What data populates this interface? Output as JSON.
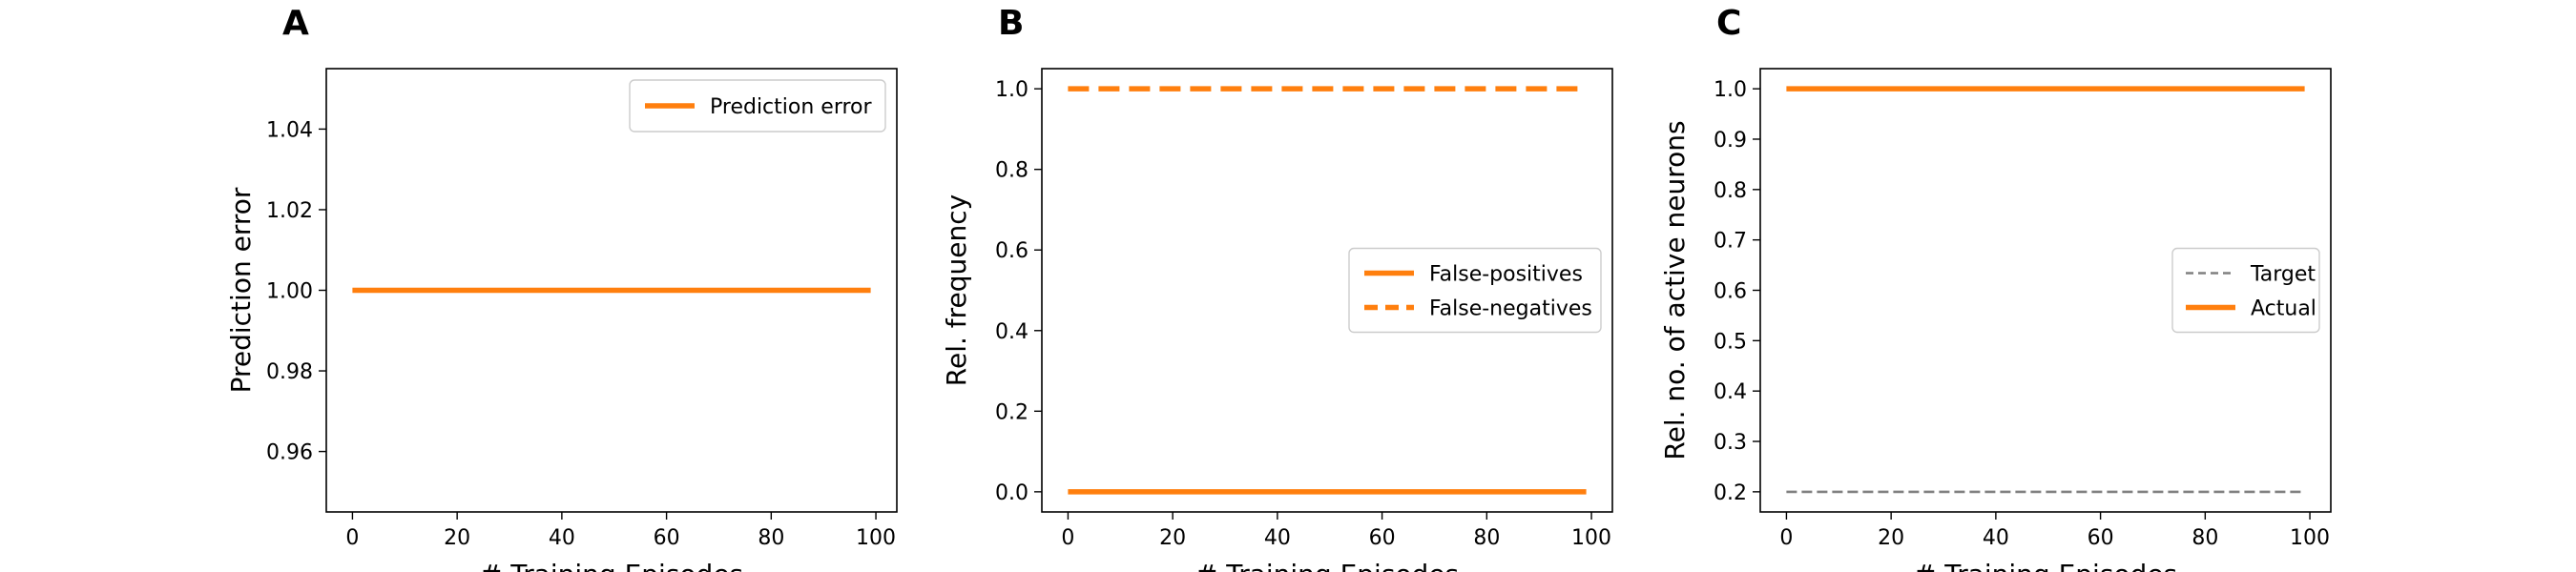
{
  "chart_data": [
    {
      "panel": "A",
      "type": "line",
      "xlabel": "# Training Episodes",
      "ylabel": "Prediction error",
      "xlim": [
        -5,
        104
      ],
      "ylim": [
        0.945,
        1.055
      ],
      "xticks": [
        0,
        20,
        40,
        60,
        80,
        100
      ],
      "yticks": [
        0.96,
        0.98,
        1.0,
        1.02,
        1.04
      ],
      "ytick_labels": [
        "0.96",
        "0.98",
        "1.00",
        "1.02",
        "1.04"
      ],
      "legend_position": "upper-right",
      "series": [
        {
          "name": "Prediction error",
          "color": "#ff7f0e",
          "style": "solid",
          "x": [
            0,
            99
          ],
          "y": [
            1.0,
            1.0
          ]
        }
      ]
    },
    {
      "panel": "B",
      "type": "line",
      "xlabel": "# Training Episodes",
      "ylabel": "Rel. frequency",
      "xlim": [
        -5,
        104
      ],
      "ylim": [
        -0.05,
        1.05
      ],
      "xticks": [
        0,
        20,
        40,
        60,
        80,
        100
      ],
      "yticks": [
        0.0,
        0.2,
        0.4,
        0.6,
        0.8,
        1.0
      ],
      "ytick_labels": [
        "0.0",
        "0.2",
        "0.4",
        "0.6",
        "0.8",
        "1.0"
      ],
      "legend_position": "center-right",
      "series": [
        {
          "name": "False-positives",
          "color": "#ff7f0e",
          "style": "solid",
          "x": [
            0,
            99
          ],
          "y": [
            0.0,
            0.0
          ]
        },
        {
          "name": "False-negatives",
          "color": "#ff7f0e",
          "style": "dashed",
          "x": [
            0,
            99
          ],
          "y": [
            1.0,
            1.0
          ]
        }
      ]
    },
    {
      "panel": "C",
      "type": "line",
      "xlabel": "# Training Episodes",
      "ylabel": "Rel. no. of active neurons",
      "xlim": [
        -5,
        104
      ],
      "ylim": [
        0.16,
        1.04
      ],
      "xticks": [
        0,
        20,
        40,
        60,
        80,
        100
      ],
      "yticks": [
        0.2,
        0.3,
        0.4,
        0.5,
        0.6,
        0.7,
        0.8,
        0.9,
        1.0
      ],
      "ytick_labels": [
        "0.2",
        "0.3",
        "0.4",
        "0.5",
        "0.6",
        "0.7",
        "0.8",
        "0.9",
        "1.0"
      ],
      "legend_position": "center-right",
      "series": [
        {
          "name": "Target",
          "color": "#808080",
          "style": "dashed-thin",
          "x": [
            0,
            99
          ],
          "y": [
            0.2,
            0.2
          ]
        },
        {
          "name": "Actual",
          "color": "#ff7f0e",
          "style": "solid",
          "x": [
            0,
            99
          ],
          "y": [
            1.0,
            1.0
          ]
        }
      ]
    }
  ]
}
